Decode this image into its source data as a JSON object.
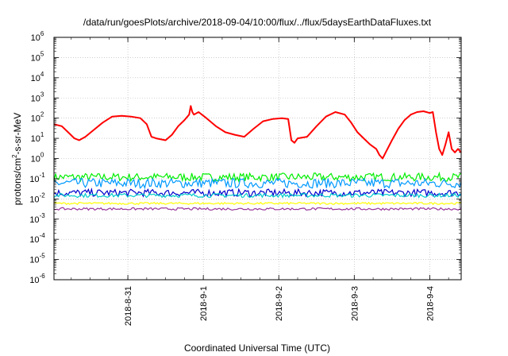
{
  "chart_data": {
    "type": "line",
    "title": "/data/run/goesPlots/archive/2018-09-04/10:00/flux/../flux/5daysEarthDataFluxes.txt",
    "xlabel": "Coordinated Universal Time (UTC)",
    "ylabel": "protons/cm²-s-sr-MeV",
    "ylabel_parts": {
      "pre": "protons/cm",
      "sup": "2",
      "post": "-s-sr-MeV"
    },
    "yscale": "log",
    "ylim": [
      1e-06,
      1000000.0
    ],
    "y_ticks": [
      {
        "base": "10",
        "exp": "-6",
        "value": 1e-06
      },
      {
        "base": "10",
        "exp": "-5",
        "value": 1e-05
      },
      {
        "base": "10",
        "exp": "-4",
        "value": 0.0001
      },
      {
        "base": "10",
        "exp": "-3",
        "value": 0.001
      },
      {
        "base": "10",
        "exp": "-2",
        "value": 0.01
      },
      {
        "base": "10",
        "exp": "-1",
        "value": 0.1
      },
      {
        "base": "10",
        "exp": "0",
        "value": 1
      },
      {
        "base": "10",
        "exp": "1",
        "value": 10.0
      },
      {
        "base": "10",
        "exp": "2",
        "value": 100.0
      },
      {
        "base": "10",
        "exp": "3",
        "value": 1000.0
      },
      {
        "base": "10",
        "exp": "4",
        "value": 10000.0
      },
      {
        "base": "10",
        "exp": "5",
        "value": 100000.0
      },
      {
        "base": "10",
        "exp": "6",
        "value": 1000000.0
      }
    ],
    "xlim": [
      "2018-08-30T00:30",
      "2018-09-04T10:00"
    ],
    "x_ticks": [
      {
        "label": "2018-8-31",
        "value": "2018-08-31T00:00"
      },
      {
        "label": "2018-9-1",
        "value": "2018-09-01T00:00"
      },
      {
        "label": "2018-9-2",
        "value": "2018-09-02T00:00"
      },
      {
        "label": "2018-9-3",
        "value": "2018-09-03T00:00"
      },
      {
        "label": "2018-9-4",
        "value": "2018-09-04T00:00"
      }
    ],
    "grid": true,
    "series": [
      {
        "color": "#ff0000",
        "width": 2,
        "x": [
          "2018-08-30T00:30",
          "2018-08-30T03:00",
          "2018-08-30T05:00",
          "2018-08-30T07:00",
          "2018-08-30T08:30",
          "2018-08-30T10:30",
          "2018-08-30T13:00",
          "2018-08-30T16:00",
          "2018-08-30T19:00",
          "2018-08-30T22:00",
          "2018-08-31T01:00",
          "2018-08-31T04:00",
          "2018-08-31T06:00",
          "2018-08-31T07:30",
          "2018-08-31T09:00",
          "2018-08-31T12:00",
          "2018-08-31T14:00",
          "2018-08-31T16:00",
          "2018-08-31T18:00",
          "2018-08-31T19:30",
          "2018-08-31T20:00",
          "2018-08-31T20:30",
          "2018-08-31T21:00",
          "2018-08-31T22:30",
          "2018-09-01T01:00",
          "2018-09-01T04:00",
          "2018-09-01T07:00",
          "2018-09-01T10:00",
          "2018-09-01T13:00",
          "2018-09-01T16:00",
          "2018-09-01T19:00",
          "2018-09-01T22:00",
          "2018-09-02T01:00",
          "2018-09-02T03:00",
          "2018-09-02T04:00",
          "2018-09-02T05:00",
          "2018-09-02T06:00",
          "2018-09-02T09:00",
          "2018-09-02T12:00",
          "2018-09-02T15:00",
          "2018-09-02T18:00",
          "2018-09-02T21:00",
          "2018-09-02T23:00",
          "2018-09-03T01:00",
          "2018-09-03T03:00",
          "2018-09-03T05:00",
          "2018-09-03T07:00",
          "2018-09-03T08:00",
          "2018-09-03T09:00",
          "2018-09-03T10:00",
          "2018-09-03T12:00",
          "2018-09-03T14:00",
          "2018-09-03T16:00",
          "2018-09-03T18:00",
          "2018-09-03T20:00",
          "2018-09-03T22:00",
          "2018-09-04T00:00",
          "2018-09-04T01:00",
          "2018-09-04T02:00",
          "2018-09-04T03:00",
          "2018-09-04T04:00",
          "2018-09-04T05:00",
          "2018-09-04T06:00",
          "2018-09-04T07:00",
          "2018-09-04T08:00",
          "2018-09-04T09:00",
          "2018-09-04T10:00"
        ],
        "y": [
          50,
          40,
          20,
          10,
          8,
          12,
          25,
          60,
          120,
          130,
          120,
          100,
          50,
          12,
          10,
          8,
          15,
          40,
          80,
          150,
          400,
          200,
          150,
          200,
          100,
          40,
          20,
          15,
          12,
          30,
          70,
          90,
          100,
          90,
          8,
          6,
          10,
          12,
          40,
          120,
          200,
          150,
          60,
          20,
          10,
          5,
          3,
          1.5,
          1,
          2,
          8,
          30,
          80,
          150,
          200,
          220,
          180,
          200,
          20,
          3,
          1.5,
          5,
          20,
          3,
          2,
          3,
          2
        ]
      }
    ],
    "bands": [
      {
        "color": "#00ee00",
        "center": 0.12,
        "spread": 0.2
      },
      {
        "color": "#0099ff",
        "center": 0.06,
        "spread": 0.24
      },
      {
        "color": "#0000cc",
        "center": 0.02,
        "spread": 0.18
      },
      {
        "color": "#00cccc",
        "center": 0.015,
        "spread": 0.1
      },
      {
        "color": "#ffff00",
        "center": 0.006,
        "spread": 0.05
      },
      {
        "color": "#993399",
        "center": 0.0032,
        "spread": 0.06
      }
    ]
  }
}
